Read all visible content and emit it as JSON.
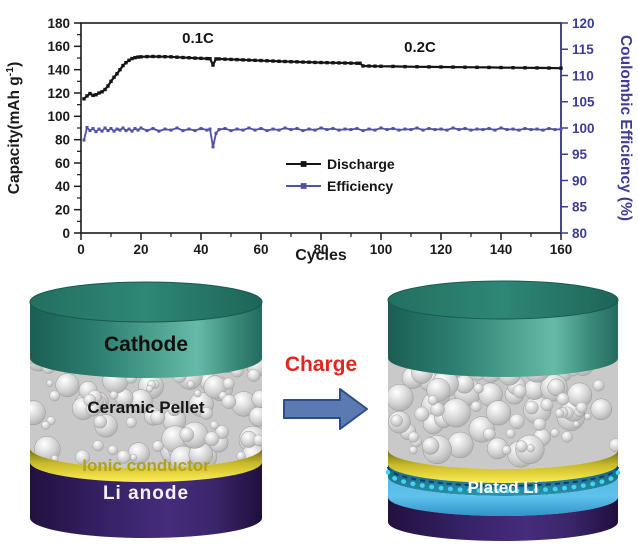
{
  "figure": {
    "background": "#ffffff"
  },
  "chart_data": {
    "type": "line",
    "xlabel": "Cycles",
    "ylabel_left_main": "Capacity(mAh g",
    "ylabel_left_sup": "-1",
    "ylabel_left_close": ")",
    "ylabel_right": "Coulombic Efficiency (%)",
    "xlim": [
      0,
      160
    ],
    "ylim_left": [
      0,
      180
    ],
    "ylim_right": [
      80,
      120
    ],
    "x_ticks": [
      0,
      20,
      40,
      60,
      80,
      100,
      120,
      140,
      160
    ],
    "x_minor_step": 10,
    "y_left_ticks": [
      0,
      20,
      40,
      60,
      80,
      100,
      120,
      140,
      160,
      180
    ],
    "y_left_minor_step": 10,
    "y_right_ticks": [
      80,
      85,
      90,
      95,
      100,
      105,
      110,
      115,
      120
    ],
    "left_axis_color": "#1a1a1a",
    "right_axis_color": "#3c3c96",
    "grid": false,
    "legend_position": "inside-center",
    "annotations": [
      {
        "text": "0.1C",
        "x": 39,
        "y": 163
      },
      {
        "text": "0.2C",
        "x": 113,
        "y": 155
      }
    ],
    "series": [
      {
        "name": "Discharge",
        "axis": "left",
        "color": "#141414",
        "points": [
          [
            1,
            115
          ],
          [
            2,
            117.5
          ],
          [
            3,
            119.5
          ],
          [
            4,
            118
          ],
          [
            5,
            118.5
          ],
          [
            6,
            120
          ],
          [
            7,
            121
          ],
          [
            8,
            123
          ],
          [
            9,
            126
          ],
          [
            10,
            130
          ],
          [
            11,
            133.5
          ],
          [
            12,
            136.5
          ],
          [
            13,
            140
          ],
          [
            14,
            143.5
          ],
          [
            15,
            146
          ],
          [
            16,
            148
          ],
          [
            17,
            149.5
          ],
          [
            18,
            150.3
          ],
          [
            19,
            150.8
          ],
          [
            20,
            151
          ],
          [
            22,
            151.2
          ],
          [
            24,
            151.3
          ],
          [
            26,
            151.2
          ],
          [
            28,
            151.1
          ],
          [
            30,
            151
          ],
          [
            32,
            150.7
          ],
          [
            34,
            150.4
          ],
          [
            36,
            150.2
          ],
          [
            38,
            149.9
          ],
          [
            40,
            149.7
          ],
          [
            42,
            149.5
          ],
          [
            43,
            149.4
          ],
          [
            44,
            144
          ],
          [
            45,
            149.2
          ],
          [
            46,
            149.2
          ],
          [
            48,
            149
          ],
          [
            50,
            148.8
          ],
          [
            52,
            148.6
          ],
          [
            54,
            148.4
          ],
          [
            56,
            148.2
          ],
          [
            58,
            148
          ],
          [
            60,
            147.8
          ],
          [
            62,
            147.6
          ],
          [
            64,
            147.4
          ],
          [
            66,
            147.2
          ],
          [
            68,
            147
          ],
          [
            70,
            146.8
          ],
          [
            72,
            146.7
          ],
          [
            74,
            146.5
          ],
          [
            76,
            146.4
          ],
          [
            78,
            146.2
          ],
          [
            80,
            146.1
          ],
          [
            82,
            146
          ],
          [
            84,
            145.9
          ],
          [
            86,
            145.8
          ],
          [
            88,
            145.7
          ],
          [
            90,
            145.6
          ],
          [
            92,
            145.5
          ],
          [
            93,
            145.5
          ],
          [
            94,
            143.2
          ],
          [
            96,
            143.1
          ],
          [
            98,
            143
          ],
          [
            100,
            142.9
          ],
          [
            104,
            142.8
          ],
          [
            108,
            142.6
          ],
          [
            112,
            142.5
          ],
          [
            116,
            142.4
          ],
          [
            120,
            142.3
          ],
          [
            124,
            142.2
          ],
          [
            128,
            142.1
          ],
          [
            132,
            142
          ],
          [
            136,
            141.9
          ],
          [
            140,
            141.8
          ],
          [
            144,
            141.7
          ],
          [
            148,
            141.6
          ],
          [
            152,
            141.5
          ],
          [
            156,
            141.4
          ],
          [
            160,
            141.3
          ]
        ]
      },
      {
        "name": "Efficiency",
        "axis": "right",
        "color": "#4f51a5",
        "points": [
          [
            1,
            97.7
          ],
          [
            2,
            100.1
          ],
          [
            3,
            99.5
          ],
          [
            4,
            99.9
          ],
          [
            5,
            99.3
          ],
          [
            6,
            99.8
          ],
          [
            7,
            99.4
          ],
          [
            8,
            100.0
          ],
          [
            9,
            99.5
          ],
          [
            10,
            99.9
          ],
          [
            11,
            99.4
          ],
          [
            12,
            99.8
          ],
          [
            13,
            99.6
          ],
          [
            14,
            100.0
          ],
          [
            15,
            99.5
          ],
          [
            16,
            99.8
          ],
          [
            17,
            99.4
          ],
          [
            18,
            99.9
          ],
          [
            19,
            99.6
          ],
          [
            20,
            100.0
          ],
          [
            22,
            99.5
          ],
          [
            24,
            99.9
          ],
          [
            26,
            99.4
          ],
          [
            28,
            99.8
          ],
          [
            30,
            99.6
          ],
          [
            32,
            100.0
          ],
          [
            34,
            99.5
          ],
          [
            36,
            99.8
          ],
          [
            38,
            99.5
          ],
          [
            40,
            99.9
          ],
          [
            42,
            99.6
          ],
          [
            43,
            99.8
          ],
          [
            44,
            96.4
          ],
          [
            45,
            99.0
          ],
          [
            46,
            99.7
          ],
          [
            48,
            99.9
          ],
          [
            50,
            99.5
          ],
          [
            52,
            99.8
          ],
          [
            54,
            99.6
          ],
          [
            56,
            100.0
          ],
          [
            58,
            99.6
          ],
          [
            60,
            99.9
          ],
          [
            62,
            99.5
          ],
          [
            64,
            99.8
          ],
          [
            66,
            99.6
          ],
          [
            68,
            100.0
          ],
          [
            70,
            99.7
          ],
          [
            72,
            99.9
          ],
          [
            74,
            99.5
          ],
          [
            76,
            99.8
          ],
          [
            78,
            99.6
          ],
          [
            80,
            100.0
          ],
          [
            82,
            99.7
          ],
          [
            84,
            99.9
          ],
          [
            86,
            99.6
          ],
          [
            88,
            99.8
          ],
          [
            90,
            99.7
          ],
          [
            92,
            99.9
          ],
          [
            94,
            99.5
          ],
          [
            96,
            99.8
          ],
          [
            98,
            99.6
          ],
          [
            100,
            100.0
          ],
          [
            102,
            99.7
          ],
          [
            104,
            99.9
          ],
          [
            106,
            99.6
          ],
          [
            108,
            99.8
          ],
          [
            110,
            99.7
          ],
          [
            112,
            100.0
          ],
          [
            114,
            99.6
          ],
          [
            116,
            99.9
          ],
          [
            118,
            99.7
          ],
          [
            120,
            99.8
          ],
          [
            122,
            99.6
          ],
          [
            124,
            100.0
          ],
          [
            126,
            99.7
          ],
          [
            128,
            99.9
          ],
          [
            130,
            99.6
          ],
          [
            132,
            99.8
          ],
          [
            134,
            99.7
          ],
          [
            136,
            99.9
          ],
          [
            138,
            99.6
          ],
          [
            140,
            100.0
          ],
          [
            142,
            99.7
          ],
          [
            144,
            99.8
          ],
          [
            146,
            99.6
          ],
          [
            148,
            99.9
          ],
          [
            150,
            99.7
          ],
          [
            152,
            99.8
          ],
          [
            154,
            99.6
          ],
          [
            156,
            99.9
          ],
          [
            158,
            99.7
          ],
          [
            160,
            99.8
          ]
        ]
      }
    ]
  },
  "diagram": {
    "charge": {
      "label": "Charge",
      "text_color": "#e2261f",
      "arrow_fill": "#5b7ab2",
      "arrow_stroke": "#2d4c8c"
    },
    "left_cell": {
      "cathode_label": "Cathode",
      "pellet_label": "Ceramic Pellet",
      "conductor_label": "Ionic conductor",
      "anode_label": "Li anode",
      "cathode_label_color": "#101010",
      "pellet_label_color": "#161616",
      "conductor_label_color": "#b0a21f",
      "anode_label_color": "#f4f2f8"
    },
    "right_cell": {
      "plated_label": "Plated Li",
      "plated_label_color": "#ffffff"
    },
    "colors": {
      "cathode_dark": "#1c6155",
      "cathode_light": "#6fc0ad",
      "pellet_base": "#c9c9c9",
      "conductor_top": "#6f6614",
      "conductor_bottom": "#ffee55",
      "anode_dark": "#221140",
      "anode_light": "#4d3187",
      "plated_light": "#5fc2ec",
      "plated_dark": "#2f93c9",
      "interface_teal": "#1b7187",
      "dot_cyan": "#41d4f4"
    }
  }
}
